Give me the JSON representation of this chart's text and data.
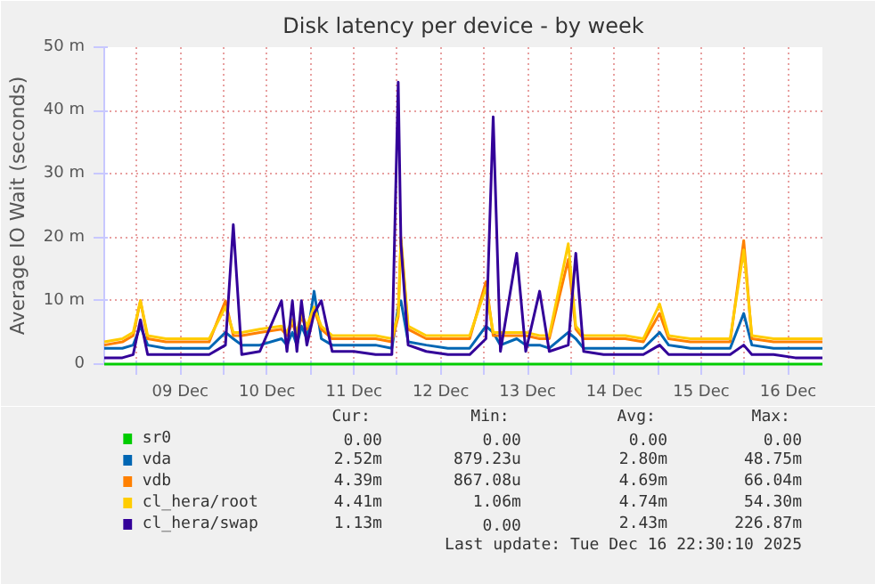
{
  "chart_data": {
    "type": "line",
    "title": "Disk latency per device - by week",
    "ylabel": "Average IO Wait (seconds)",
    "x": [
      "2025-12-08T15:00",
      "2025-12-08T20:00",
      "2025-12-08T23:00",
      "2025-12-09T01:00",
      "2025-12-09T03:00",
      "2025-12-09T08:00",
      "2025-12-09T14:00",
      "2025-12-09T20:00",
      "2025-12-10T00:30",
      "2025-12-10T02:40",
      "2025-12-10T05:00",
      "2025-12-10T10:00",
      "2025-12-10T16:00",
      "2025-12-10T17:30",
      "2025-12-10T19:00",
      "2025-12-10T20:15",
      "2025-12-10T21:30",
      "2025-12-10T23:00",
      "2025-12-11T01:00",
      "2025-12-11T03:00",
      "2025-12-11T06:00",
      "2025-12-11T12:00",
      "2025-12-11T18:00",
      "2025-12-11T22:30",
      "2025-12-12T00:15",
      "2025-12-12T01:00",
      "2025-12-12T03:00",
      "2025-12-12T08:00",
      "2025-12-12T14:00",
      "2025-12-12T20:00",
      "2025-12-13T00:30",
      "2025-12-13T02:30",
      "2025-12-13T04:30",
      "2025-12-13T09:00",
      "2025-12-13T11:30",
      "2025-12-13T15:20",
      "2025-12-13T18:00",
      "2025-12-13T23:15",
      "2025-12-14T01:20",
      "2025-12-14T03:30",
      "2025-12-14T09:00",
      "2025-12-14T15:00",
      "2025-12-14T20:00",
      "2025-12-15T00:30",
      "2025-12-15T03:00",
      "2025-12-15T09:00",
      "2025-12-15T15:00",
      "2025-12-15T20:00",
      "2025-12-15T23:45",
      "2025-12-16T02:00",
      "2025-12-16T08:00",
      "2025-12-16T14:00",
      "2025-12-16T21:30"
    ],
    "series": [
      {
        "name": "sr0",
        "color": "#00cc00",
        "values": [
          0,
          0,
          0,
          0,
          0,
          0,
          0,
          0,
          0,
          0,
          0,
          0,
          0,
          0,
          0,
          0,
          0,
          0,
          0,
          0,
          0,
          0,
          0,
          0,
          0,
          0,
          0,
          0,
          0,
          0,
          0,
          0,
          0,
          0,
          0,
          0,
          0,
          0,
          0,
          0,
          0,
          0,
          0,
          0,
          0,
          0,
          0,
          0,
          0,
          0,
          0,
          0,
          0
        ]
      },
      {
        "name": "vda",
        "color": "#0066b3",
        "values": [
          2.5,
          2.5,
          3,
          6,
          3,
          2.5,
          2.5,
          2.5,
          5,
          4,
          3,
          3,
          4,
          3,
          5,
          3,
          6,
          4,
          11.5,
          4,
          3,
          3,
          3,
          2.5,
          9,
          10,
          3.5,
          3,
          2.5,
          2.5,
          6,
          5,
          3,
          4,
          3,
          3,
          2.5,
          5,
          4,
          2.5,
          2.5,
          2.5,
          2.5,
          5,
          3,
          2.5,
          2.5,
          2.5,
          8,
          3,
          2.5,
          2.5,
          2.5
        ]
      },
      {
        "name": "vdb",
        "color": "#ff8000",
        "values": [
          3,
          3.5,
          4.5,
          10,
          4,
          3.5,
          3.5,
          3.5,
          10,
          4.5,
          4.5,
          5,
          5.5,
          4.5,
          6.5,
          4.5,
          7.5,
          5.5,
          8.5,
          5.5,
          4,
          4,
          4,
          3.5,
          7.5,
          19.5,
          5.5,
          4,
          4,
          4,
          13,
          4.5,
          4.5,
          4.5,
          4.5,
          4,
          4,
          16.5,
          5.5,
          4,
          4,
          4,
          3.5,
          8,
          4,
          3.5,
          3.5,
          3.5,
          19.5,
          4,
          3.5,
          3.5,
          3.5
        ]
      },
      {
        "name": "cl_hera/root",
        "color": "#ffcc00",
        "values": [
          3.5,
          4,
          5,
          10,
          4.5,
          4,
          4,
          4,
          9,
          5,
          5,
          5.5,
          6,
          5,
          7,
          5,
          8,
          6,
          9,
          6,
          4.5,
          4.5,
          4.5,
          4,
          8,
          20,
          6,
          4.5,
          4.5,
          4.5,
          12,
          5,
          5,
          5,
          5,
          4.5,
          4.5,
          19,
          6,
          4.5,
          4.5,
          4.5,
          4,
          9.5,
          4.5,
          4,
          4,
          4,
          18,
          4.5,
          4,
          4,
          4
        ]
      },
      {
        "name": "cl_hera/swap",
        "color": "#330099",
        "values": [
          1,
          1,
          1.5,
          7,
          1.5,
          1.5,
          1.5,
          1.5,
          3,
          22,
          1.5,
          2,
          10,
          2,
          10,
          2,
          10,
          3,
          8,
          10,
          2,
          2,
          1.5,
          1.5,
          44.5,
          19,
          3,
          2,
          1.5,
          1.5,
          4,
          39,
          2,
          17.5,
          2,
          11.5,
          2,
          3,
          17.5,
          2,
          1.5,
          1.5,
          1.5,
          3,
          1.5,
          1.5,
          1.5,
          1.5,
          3,
          1.5,
          1.5,
          1,
          1
        ]
      }
    ],
    "xlim": [
      "2025-12-08T15:00",
      "2025-12-16T21:30"
    ],
    "xticks": [
      {
        "value": "2025-12-09T00:00",
        "label": null
      },
      {
        "value": "2025-12-09T12:00",
        "label": "09 Dec"
      },
      {
        "value": "2025-12-10T00:00",
        "label": null
      },
      {
        "value": "2025-12-10T12:00",
        "label": "10 Dec"
      },
      {
        "value": "2025-12-11T00:00",
        "label": null
      },
      {
        "value": "2025-12-11T12:00",
        "label": "11 Dec"
      },
      {
        "value": "2025-12-12T00:00",
        "label": null
      },
      {
        "value": "2025-12-12T12:00",
        "label": "12 Dec"
      },
      {
        "value": "2025-12-13T00:00",
        "label": null
      },
      {
        "value": "2025-12-13T12:00",
        "label": "13 Dec"
      },
      {
        "value": "2025-12-14T00:00",
        "label": null
      },
      {
        "value": "2025-12-14T12:00",
        "label": "14 Dec"
      },
      {
        "value": "2025-12-15T00:00",
        "label": null
      },
      {
        "value": "2025-12-15T12:00",
        "label": "15 Dec"
      },
      {
        "value": "2025-12-16T00:00",
        "label": null
      },
      {
        "value": "2025-12-16T12:00",
        "label": "16 Dec"
      }
    ],
    "ylim": [
      0,
      50
    ],
    "yticks": [
      0,
      {
        "value": 10,
        "label": "10 m"
      },
      {
        "value": 20,
        "label": "20 m"
      },
      {
        "value": 30,
        "label": "30 m"
      },
      {
        "value": 40,
        "label": "40 m"
      },
      {
        "value": 50,
        "label": "50 m"
      }
    ],
    "grid": true,
    "legend": "bottom",
    "annotations": [
      "Cur:",
      "Min:",
      "Avg:",
      "Max:",
      "0.00",
      "0.00",
      "0.00",
      "0.00",
      "2.52m",
      "879.23u",
      "2.80m",
      "48.75m",
      "4.39m",
      "867.08u",
      "4.69m",
      "66.04m",
      "4.41m",
      "1.06m",
      "4.74m",
      "54.30m",
      "1.13m",
      "0.00",
      "2.43m",
      "226.87m",
      "Last update: Tue Dec 16 22:30:10 2025"
    ]
  }
}
